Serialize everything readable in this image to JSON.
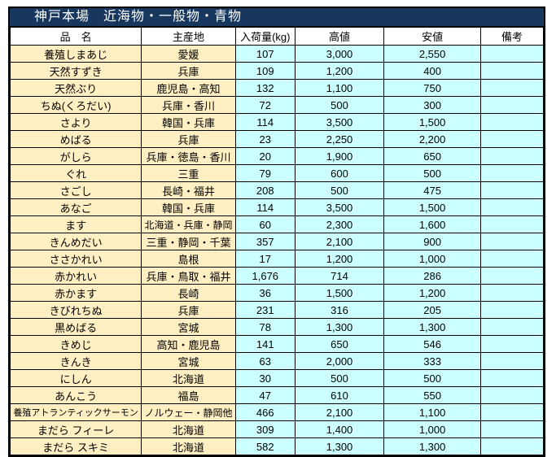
{
  "title": "神戸本場　近海物・一般物・青物",
  "columns": [
    "品　名",
    "主産地",
    "入荷量(kg)",
    "高値",
    "安値",
    "備考"
  ],
  "colors": {
    "title_bg": "#17375E",
    "title_text": "#FFFFFF",
    "name_bg": "#FFEFC2",
    "value_bg": "#CCFFFF",
    "header_bg": "#FFFFFF",
    "border": "#000000"
  },
  "rows": [
    {
      "name": "養殖しまあじ",
      "origin": "愛媛",
      "qty": "107",
      "high": "3,000",
      "low": "2,550",
      "note": ""
    },
    {
      "name": "天然すずき",
      "origin": "兵庫",
      "qty": "109",
      "high": "1,200",
      "low": "400",
      "note": ""
    },
    {
      "name": "天然ぶり",
      "origin": "鹿児島・高知",
      "qty": "132",
      "high": "1,100",
      "low": "750",
      "note": ""
    },
    {
      "name": "ちぬ(くろだい)",
      "origin": "兵庫・香川",
      "qty": "72",
      "high": "500",
      "low": "300",
      "note": ""
    },
    {
      "name": "さより",
      "origin": "韓国・兵庫",
      "qty": "114",
      "high": "3,500",
      "low": "1,500",
      "note": ""
    },
    {
      "name": "めばる",
      "origin": "兵庫",
      "qty": "23",
      "high": "2,250",
      "low": "2,200",
      "note": ""
    },
    {
      "name": "がしら",
      "origin": "兵庫・徳島・香川",
      "qty": "20",
      "high": "1,900",
      "low": "650",
      "note": ""
    },
    {
      "name": "ぐれ",
      "origin": "三重",
      "qty": "79",
      "high": "600",
      "low": "500",
      "note": ""
    },
    {
      "name": "さごし",
      "origin": "長崎・福井",
      "qty": "208",
      "high": "500",
      "low": "475",
      "note": ""
    },
    {
      "name": "あなご",
      "origin": "韓国・兵庫",
      "qty": "114",
      "high": "3,500",
      "low": "1,500",
      "note": ""
    },
    {
      "name": "ます",
      "origin": "北海道・兵庫・静岡",
      "qty": "60",
      "high": "2,300",
      "low": "1,600",
      "note": ""
    },
    {
      "name": "きんめだい",
      "origin": "三重・静岡・千葉",
      "qty": "357",
      "high": "2,100",
      "low": "900",
      "note": ""
    },
    {
      "name": "ささかれい",
      "origin": "島根",
      "qty": "17",
      "high": "1,200",
      "low": "1,000",
      "note": ""
    },
    {
      "name": "赤かれい",
      "origin": "兵庫・鳥取・福井",
      "qty": "1,676",
      "high": "714",
      "low": "286",
      "note": ""
    },
    {
      "name": "赤かます",
      "origin": "長崎",
      "qty": "36",
      "high": "1,500",
      "low": "1,200",
      "note": ""
    },
    {
      "name": "きびれちぬ",
      "origin": "兵庫",
      "qty": "231",
      "high": "316",
      "low": "205",
      "note": ""
    },
    {
      "name": "黒めばる",
      "origin": "宮城",
      "qty": "78",
      "high": "1,300",
      "low": "1,300",
      "note": ""
    },
    {
      "name": "きめじ",
      "origin": "高知・鹿児島",
      "qty": "141",
      "high": "650",
      "low": "546",
      "note": ""
    },
    {
      "name": "きんき",
      "origin": "宮城",
      "qty": "63",
      "high": "2,000",
      "low": "333",
      "note": ""
    },
    {
      "name": "にしん",
      "origin": "北海道",
      "qty": "30",
      "high": "500",
      "low": "500",
      "note": ""
    },
    {
      "name": "あんこう",
      "origin": "福島",
      "qty": "47",
      "high": "610",
      "low": "550",
      "note": ""
    },
    {
      "name": "養殖アトランティックサーモン",
      "origin": "ノルウェー・静岡他",
      "qty": "466",
      "high": "2,100",
      "low": "1,100",
      "note": ""
    },
    {
      "name": "まだら フィーレ",
      "origin": "北海道",
      "qty": "309",
      "high": "1,400",
      "low": "1,000",
      "note": ""
    },
    {
      "name": "まだら スキミ",
      "origin": "北海道",
      "qty": "582",
      "high": "1,300",
      "low": "1,300",
      "note": ""
    }
  ]
}
